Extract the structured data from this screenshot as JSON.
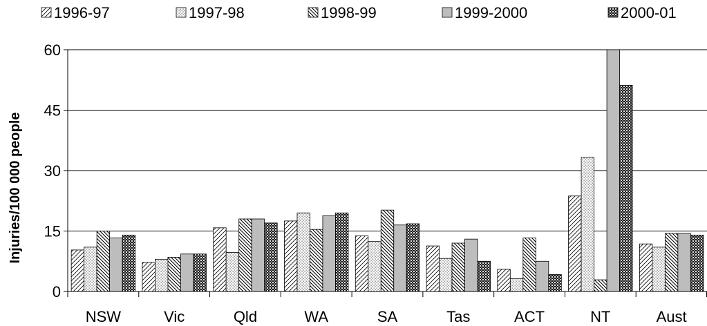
{
  "chart_data": {
    "type": "bar",
    "title": "",
    "xlabel": "",
    "ylabel": "Injuries/100 000 people",
    "ylim": [
      0,
      60
    ],
    "yticks": [
      0,
      15,
      30,
      45,
      60
    ],
    "grid": true,
    "legend_position": "top",
    "categories": [
      "NSW",
      "Vic",
      "Qld",
      "WA",
      "SA",
      "Tas",
      "ACT",
      "NT",
      "Aust"
    ],
    "series": [
      {
        "name": "1996-97",
        "fill": "diag-up",
        "values": [
          10.3,
          7.2,
          15.8,
          17.5,
          13.8,
          11.3,
          5.5,
          23.7,
          11.8
        ]
      },
      {
        "name": "1997-98",
        "fill": "dots",
        "values": [
          11.0,
          8.0,
          9.7,
          19.5,
          12.4,
          8.2,
          3.2,
          33.3,
          11.0
        ]
      },
      {
        "name": "1998-99",
        "fill": "diag-down",
        "values": [
          15.0,
          8.5,
          18.0,
          15.4,
          20.2,
          12.0,
          13.3,
          2.9,
          14.4
        ]
      },
      {
        "name": "1999-2000",
        "fill": "gray",
        "values": [
          13.3,
          9.3,
          18.0,
          18.8,
          16.5,
          13.0,
          7.5,
          60.0,
          14.4
        ]
      },
      {
        "name": "2000-01",
        "fill": "checker",
        "values": [
          14.0,
          9.3,
          17.0,
          19.5,
          16.8,
          7.5,
          4.2,
          51.2,
          14.0
        ]
      }
    ]
  }
}
